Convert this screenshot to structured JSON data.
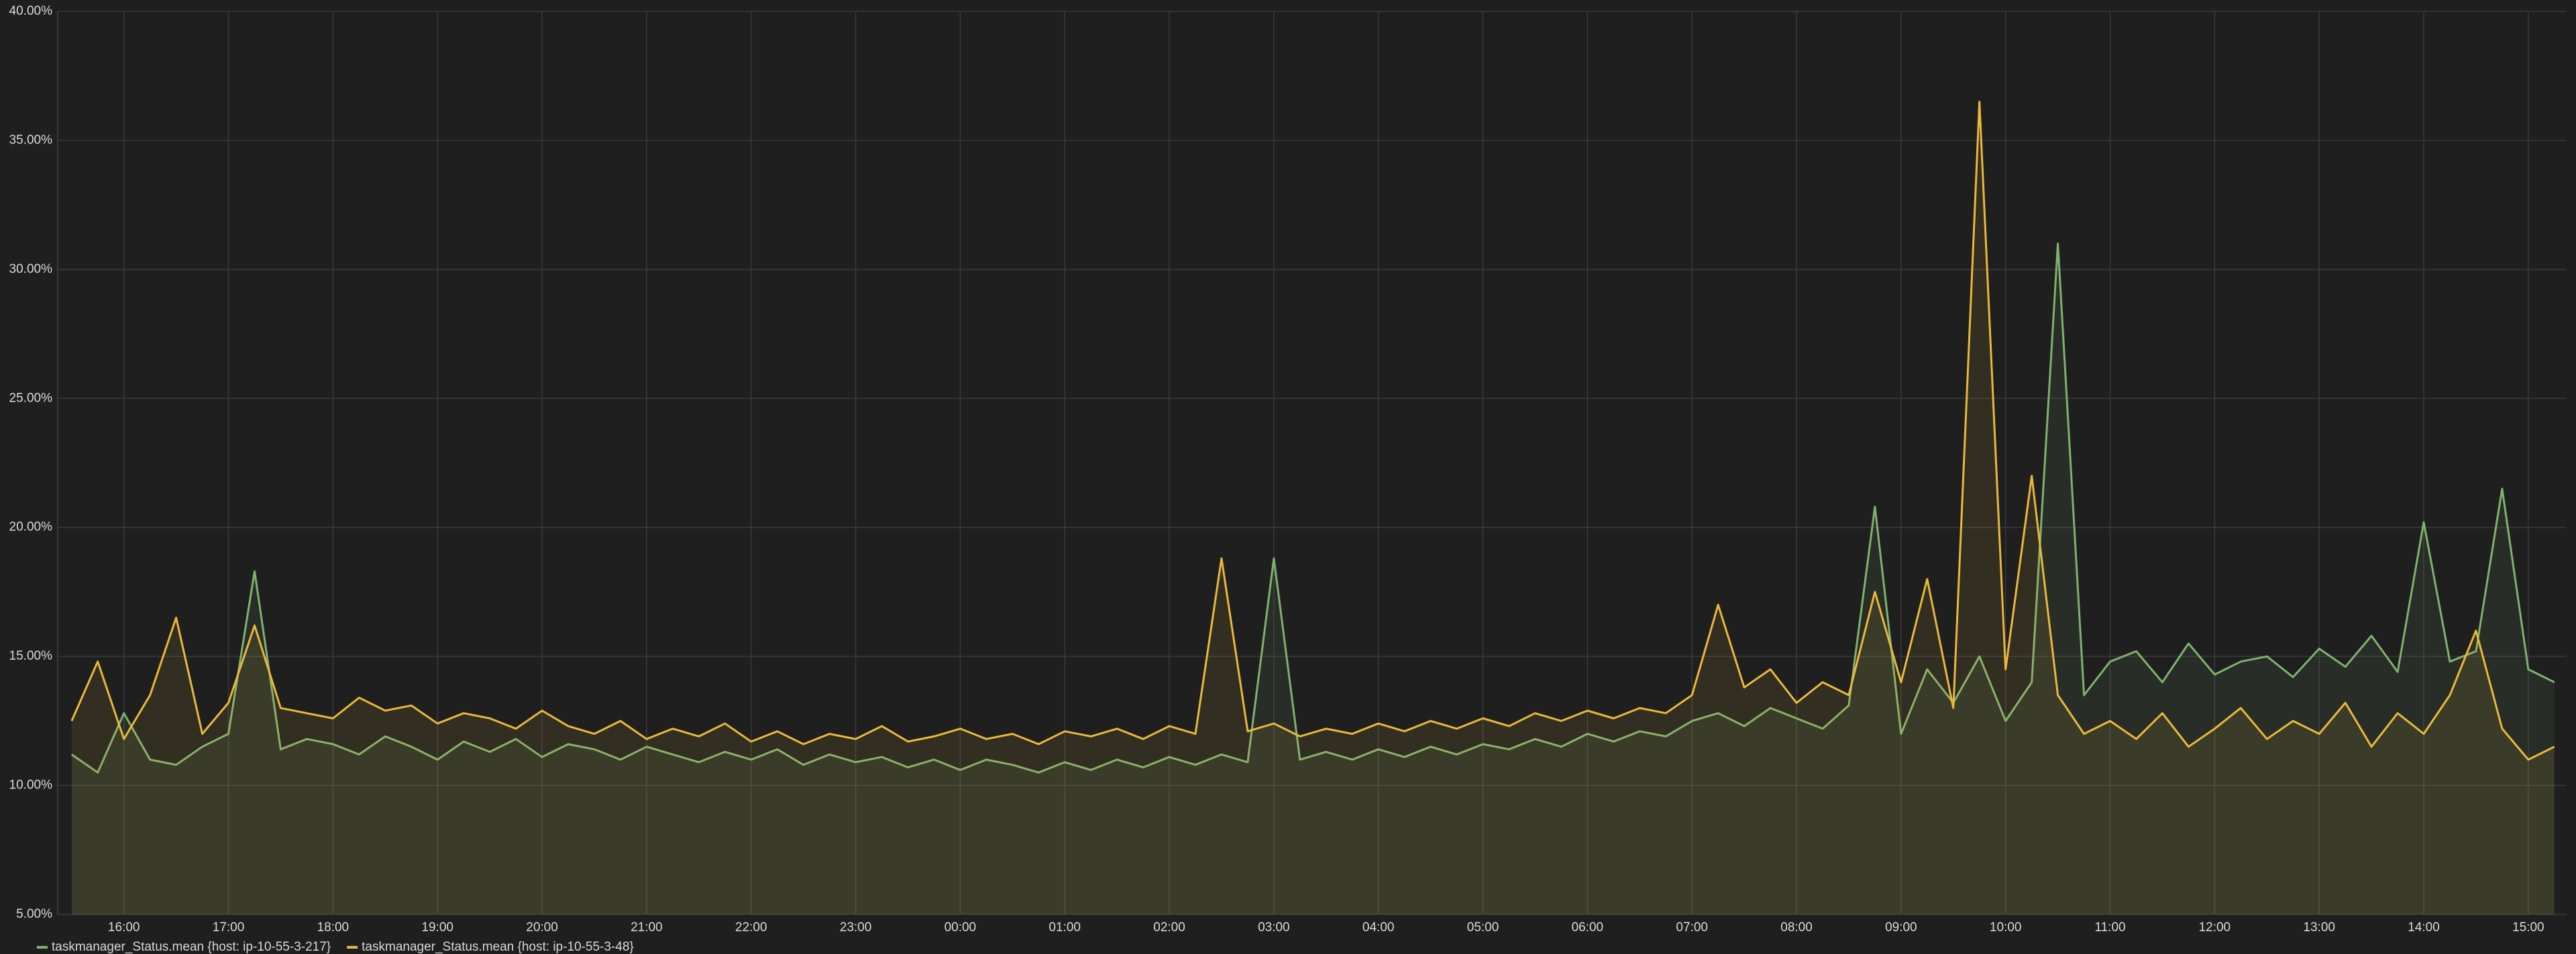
{
  "chart_data": {
    "type": "line",
    "x": [
      "15:30",
      "15:45",
      "16:00",
      "16:15",
      "16:30",
      "16:45",
      "17:00",
      "17:15",
      "17:30",
      "17:45",
      "18:00",
      "18:15",
      "18:30",
      "18:45",
      "19:00",
      "19:15",
      "19:30",
      "19:45",
      "20:00",
      "20:15",
      "20:30",
      "20:45",
      "21:00",
      "21:15",
      "21:30",
      "21:45",
      "22:00",
      "22:15",
      "22:30",
      "22:45",
      "23:00",
      "23:15",
      "23:30",
      "23:45",
      "00:00",
      "00:15",
      "00:30",
      "00:45",
      "01:00",
      "01:15",
      "01:30",
      "01:45",
      "02:00",
      "02:15",
      "02:30",
      "02:45",
      "03:00",
      "03:15",
      "03:30",
      "03:45",
      "04:00",
      "04:15",
      "04:30",
      "04:45",
      "05:00",
      "05:15",
      "05:30",
      "05:45",
      "06:00",
      "06:15",
      "06:30",
      "06:45",
      "07:00",
      "07:15",
      "07:30",
      "07:45",
      "08:00",
      "08:15",
      "08:30",
      "08:45",
      "09:00",
      "09:15",
      "09:30",
      "09:45",
      "10:00",
      "10:15",
      "10:30",
      "10:45",
      "11:00",
      "11:15",
      "11:30",
      "11:45",
      "12:00",
      "12:15",
      "12:30",
      "12:45",
      "13:00",
      "13:15",
      "13:30",
      "13:45",
      "14:00",
      "14:15",
      "14:30",
      "14:45",
      "15:00",
      "15:15"
    ],
    "series": [
      {
        "name": "taskmanager_Status.mean {host: ip-10-55-3-217}",
        "color": "#7eb26d",
        "values": [
          11.2,
          10.5,
          12.8,
          11.0,
          10.8,
          11.5,
          12.0,
          18.3,
          11.4,
          11.8,
          11.6,
          11.2,
          11.9,
          11.5,
          11.0,
          11.7,
          11.3,
          11.8,
          11.1,
          11.6,
          11.4,
          11.0,
          11.5,
          11.2,
          10.9,
          11.3,
          11.0,
          11.4,
          10.8,
          11.2,
          10.9,
          11.1,
          10.7,
          11.0,
          10.6,
          11.0,
          10.8,
          10.5,
          10.9,
          10.6,
          11.0,
          10.7,
          11.1,
          10.8,
          11.2,
          10.9,
          18.8,
          11.0,
          11.3,
          11.0,
          11.4,
          11.1,
          11.5,
          11.2,
          11.6,
          11.4,
          11.8,
          11.5,
          12.0,
          11.7,
          12.1,
          11.9,
          12.5,
          12.8,
          12.3,
          13.0,
          12.6,
          12.2,
          13.1,
          20.8,
          12.0,
          14.5,
          13.2,
          15.0,
          12.5,
          14.0,
          31.0,
          13.5,
          14.8,
          15.2,
          14.0,
          15.5,
          14.3,
          14.8,
          15.0,
          14.2,
          15.3,
          14.6,
          15.8,
          14.4,
          20.2,
          14.8,
          15.2,
          21.5,
          14.5,
          14.0
        ]
      },
      {
        "name": "taskmanager_Status.mean {host: ip-10-55-3-48}",
        "color": "#eab839",
        "values": [
          12.5,
          14.8,
          11.8,
          13.5,
          16.5,
          12.0,
          13.2,
          16.2,
          13.0,
          12.8,
          12.6,
          13.4,
          12.9,
          13.1,
          12.4,
          12.8,
          12.6,
          12.2,
          12.9,
          12.3,
          12.0,
          12.5,
          11.8,
          12.2,
          11.9,
          12.4,
          11.7,
          12.1,
          11.6,
          12.0,
          11.8,
          12.3,
          11.7,
          11.9,
          12.2,
          11.8,
          12.0,
          11.6,
          12.1,
          11.9,
          12.2,
          11.8,
          12.3,
          12.0,
          18.8,
          12.1,
          12.4,
          11.9,
          12.2,
          12.0,
          12.4,
          12.1,
          12.5,
          12.2,
          12.6,
          12.3,
          12.8,
          12.5,
          12.9,
          12.6,
          13.0,
          12.8,
          13.5,
          17.0,
          13.8,
          14.5,
          13.2,
          14.0,
          13.5,
          17.5,
          14.0,
          18.0,
          13.0,
          36.5,
          14.5,
          22.0,
          13.5,
          12.0,
          12.5,
          11.8,
          12.8,
          11.5,
          12.2,
          13.0,
          11.8,
          12.5,
          12.0,
          13.2,
          11.5,
          12.8,
          12.0,
          13.5,
          16.0,
          12.2,
          11.0,
          11.5
        ]
      }
    ],
    "ylim": [
      5,
      40
    ],
    "yticks": [
      {
        "value": 5,
        "label": "5.00%"
      },
      {
        "value": 10,
        "label": "10.00%"
      },
      {
        "value": 15,
        "label": "15.00%"
      },
      {
        "value": 20,
        "label": "20.00%"
      },
      {
        "value": 25,
        "label": "25.00%"
      },
      {
        "value": 30,
        "label": "30.00%"
      },
      {
        "value": 35,
        "label": "35.00%"
      },
      {
        "value": 40,
        "label": "40.00%"
      }
    ],
    "xticks": [
      "16:00",
      "17:00",
      "18:00",
      "19:00",
      "20:00",
      "21:00",
      "22:00",
      "23:00",
      "00:00",
      "01:00",
      "02:00",
      "03:00",
      "04:00",
      "05:00",
      "06:00",
      "07:00",
      "08:00",
      "09:00",
      "10:00",
      "11:00",
      "12:00",
      "13:00",
      "14:00",
      "15:00"
    ],
    "grid": true,
    "fill": true,
    "legend": "bottom"
  }
}
